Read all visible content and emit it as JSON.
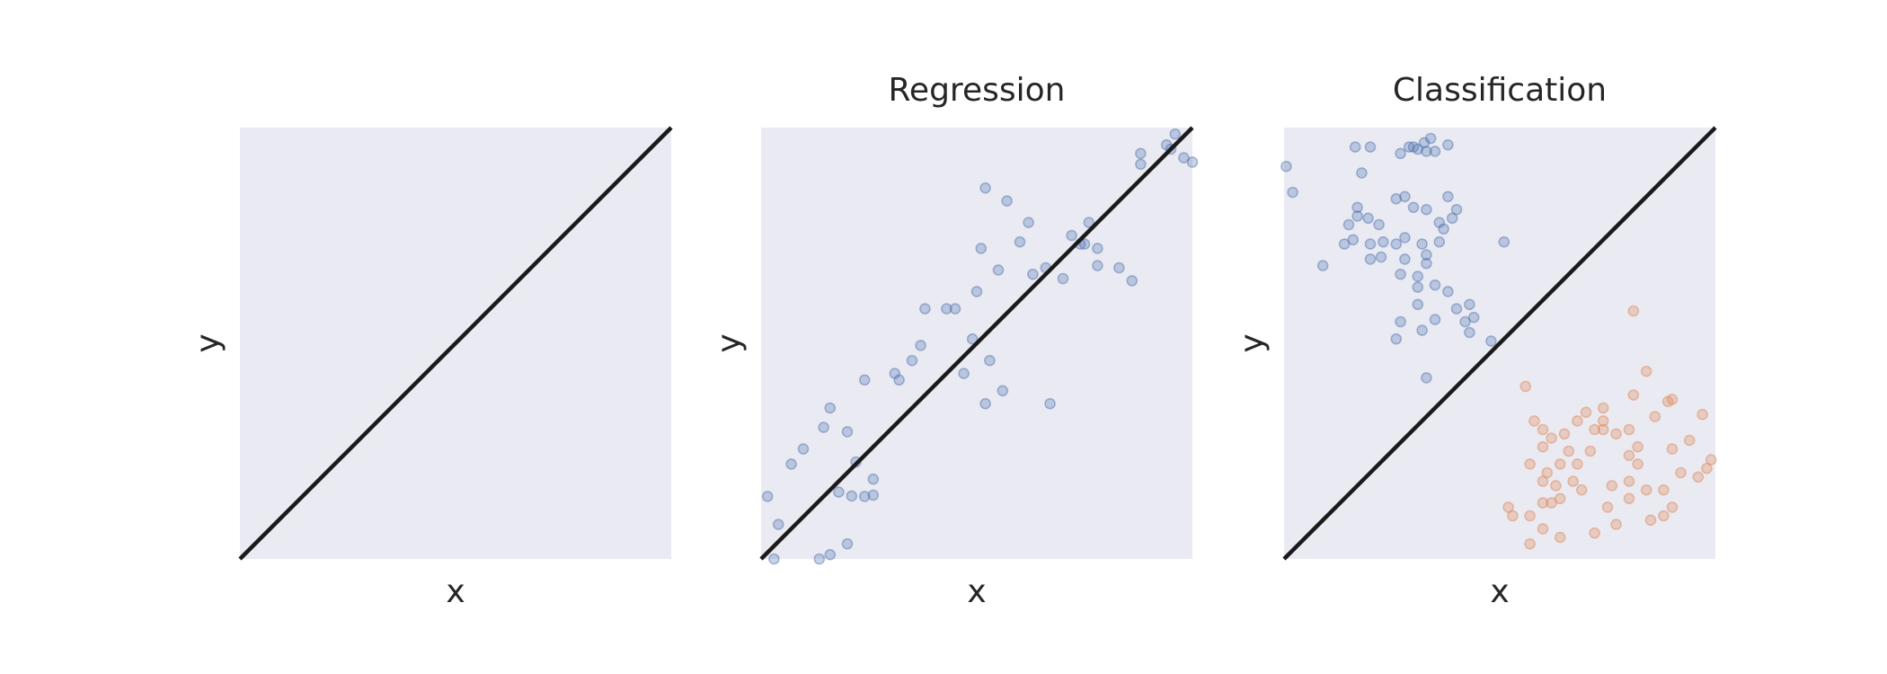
{
  "chart_data": [
    {
      "type": "line",
      "title": "",
      "xlabel": "x",
      "ylabel": "y",
      "xlim": [
        0,
        1
      ],
      "ylim": [
        0,
        1
      ],
      "grid": false,
      "series": [
        {
          "values": [
            [
              0,
              0
            ],
            [
              1,
              1
            ]
          ],
          "color": "#1a1a1a"
        }
      ]
    },
    {
      "type": "scatter",
      "title": "Regression",
      "xlabel": "x",
      "ylabel": "y",
      "xlim": [
        0,
        1
      ],
      "ylim": [
        0,
        1
      ],
      "grid": false,
      "series": [
        {
          "color": "#4c72b0",
          "points": [
            [
              0.015,
              0.145
            ],
            [
              0.04,
              0.08
            ],
            [
              0.07,
              0.22
            ],
            [
              0.098,
              0.255
            ],
            [
              0.16,
              0.35
            ],
            [
              0.18,
              0.155
            ],
            [
              0.21,
              0.146
            ],
            [
              0.26,
              0.148
            ],
            [
              0.24,
              0.145
            ],
            [
              0.26,
              0.185
            ],
            [
              0.22,
              0.225
            ],
            [
              0.2,
              0.295
            ],
            [
              0.145,
              0.305
            ],
            [
              0.24,
              0.415
            ],
            [
              0.32,
              0.415
            ],
            [
              0.31,
              0.43
            ],
            [
              0.35,
              0.46
            ],
            [
              0.37,
              0.495
            ],
            [
              0.38,
              0.58
            ],
            [
              0.45,
              0.58
            ],
            [
              0.43,
              0.58
            ],
            [
              0.5,
              0.62
            ],
            [
              0.51,
              0.72
            ],
            [
              0.55,
              0.67
            ],
            [
              0.49,
              0.51
            ],
            [
              0.53,
              0.46
            ],
            [
              0.56,
              0.39
            ],
            [
              0.52,
              0.36
            ],
            [
              0.47,
              0.43
            ],
            [
              0.63,
              0.66
            ],
            [
              0.66,
              0.675
            ],
            [
              0.7,
              0.65
            ],
            [
              0.72,
              0.75
            ],
            [
              0.74,
              0.73
            ],
            [
              0.78,
              0.68
            ],
            [
              0.78,
              0.72
            ],
            [
              0.76,
              0.78
            ],
            [
              0.62,
              0.78
            ],
            [
              0.57,
              0.83
            ],
            [
              0.52,
              0.86
            ],
            [
              0.6,
              0.735
            ],
            [
              0.67,
              0.36
            ],
            [
              0.75,
              0.73
            ],
            [
              0.86,
              0.645
            ],
            [
              0.83,
              0.675
            ],
            [
              0.88,
              0.94
            ],
            [
              0.88,
              0.915
            ],
            [
              0.94,
              0.96
            ],
            [
              0.96,
              0.985
            ],
            [
              0.95,
              0.95
            ],
            [
              0.98,
              0.93
            ],
            [
              1.0,
              0.92
            ],
            [
              0.2,
              0.035
            ],
            [
              0.16,
              0.01
            ],
            [
              0.135,
              0.0
            ],
            [
              0.03,
              0.0
            ]
          ]
        },
        {
          "values": [
            [
              0,
              0
            ],
            [
              1,
              1
            ]
          ],
          "color": "#1a1a1a"
        }
      ]
    },
    {
      "type": "scatter",
      "title": "Classification",
      "xlabel": "x",
      "ylabel": "y",
      "xlim": [
        0,
        1
      ],
      "ylim": [
        0,
        1
      ],
      "grid": false,
      "series": [
        {
          "color": "#4c72b0",
          "points": [
            [
              0.005,
              0.91
            ],
            [
              0.02,
              0.85
            ],
            [
              0.165,
              0.955
            ],
            [
              0.2,
              0.955
            ],
            [
              0.29,
              0.955
            ],
            [
              0.31,
              0.95
            ],
            [
              0.3,
              0.955
            ],
            [
              0.325,
              0.965
            ],
            [
              0.34,
              0.975
            ],
            [
              0.27,
              0.94
            ],
            [
              0.33,
              0.945
            ],
            [
              0.38,
              0.96
            ],
            [
              0.35,
              0.945
            ],
            [
              0.18,
              0.895
            ],
            [
              0.28,
              0.84
            ],
            [
              0.26,
              0.835
            ],
            [
              0.3,
              0.815
            ],
            [
              0.33,
              0.81
            ],
            [
              0.38,
              0.84
            ],
            [
              0.36,
              0.78
            ],
            [
              0.37,
              0.765
            ],
            [
              0.39,
              0.79
            ],
            [
              0.4,
              0.81
            ],
            [
              0.15,
              0.775
            ],
            [
              0.195,
              0.79
            ],
            [
              0.22,
              0.775
            ],
            [
              0.17,
              0.815
            ],
            [
              0.17,
              0.795
            ],
            [
              0.14,
              0.73
            ],
            [
              0.16,
              0.74
            ],
            [
              0.2,
              0.695
            ],
            [
              0.225,
              0.7
            ],
            [
              0.23,
              0.735
            ],
            [
              0.26,
              0.73
            ],
            [
              0.28,
              0.745
            ],
            [
              0.28,
              0.695
            ],
            [
              0.32,
              0.73
            ],
            [
              0.33,
              0.685
            ],
            [
              0.33,
              0.705
            ],
            [
              0.36,
              0.735
            ],
            [
              0.27,
              0.66
            ],
            [
              0.31,
              0.63
            ],
            [
              0.35,
              0.635
            ],
            [
              0.38,
              0.62
            ],
            [
              0.43,
              0.59
            ],
            [
              0.44,
              0.56
            ],
            [
              0.31,
              0.59
            ],
            [
              0.32,
              0.53
            ],
            [
              0.35,
              0.555
            ],
            [
              0.4,
              0.58
            ],
            [
              0.27,
              0.55
            ],
            [
              0.42,
              0.55
            ],
            [
              0.26,
              0.51
            ],
            [
              0.48,
              0.505
            ],
            [
              0.51,
              0.735
            ],
            [
              0.09,
              0.68
            ],
            [
              0.31,
              0.655
            ],
            [
              0.33,
              0.42
            ],
            [
              0.43,
              0.525
            ],
            [
              0.2,
              0.73
            ]
          ]
        },
        {
          "color": "#dd8452",
          "points": [
            [
              0.56,
              0.4
            ],
            [
              0.57,
              0.035
            ],
            [
              0.81,
              0.575
            ],
            [
              0.84,
              0.435
            ],
            [
              0.89,
              0.365
            ],
            [
              0.81,
              0.38
            ],
            [
              0.8,
              0.3
            ],
            [
              0.82,
              0.26
            ],
            [
              0.86,
              0.33
            ],
            [
              0.9,
              0.37
            ],
            [
              0.97,
              0.335
            ],
            [
              0.99,
              0.23
            ],
            [
              0.94,
              0.275
            ],
            [
              0.9,
              0.255
            ],
            [
              0.92,
              0.2
            ],
            [
              0.88,
              0.16
            ],
            [
              0.84,
              0.16
            ],
            [
              0.8,
              0.18
            ],
            [
              0.8,
              0.24
            ],
            [
              0.77,
              0.29
            ],
            [
              0.74,
              0.32
            ],
            [
              0.74,
              0.35
            ],
            [
              0.74,
              0.3
            ],
            [
              0.72,
              0.3
            ],
            [
              0.7,
              0.34
            ],
            [
              0.68,
              0.32
            ],
            [
              0.65,
              0.29
            ],
            [
              0.62,
              0.28
            ],
            [
              0.6,
              0.26
            ],
            [
              0.6,
              0.3
            ],
            [
              0.58,
              0.32
            ],
            [
              0.57,
              0.22
            ],
            [
              0.61,
              0.2
            ],
            [
              0.64,
              0.22
            ],
            [
              0.66,
              0.25
            ],
            [
              0.68,
              0.22
            ],
            [
              0.67,
              0.18
            ],
            [
              0.69,
              0.16
            ],
            [
              0.64,
              0.14
            ],
            [
              0.62,
              0.13
            ],
            [
              0.6,
              0.13
            ],
            [
              0.57,
              0.1
            ],
            [
              0.53,
              0.1
            ],
            [
              0.52,
              0.12
            ],
            [
              0.6,
              0.07
            ],
            [
              0.64,
              0.05
            ],
            [
              0.72,
              0.06
            ],
            [
              0.75,
              0.12
            ],
            [
              0.77,
              0.08
            ],
            [
              0.8,
              0.14
            ],
            [
              0.85,
              0.09
            ],
            [
              0.88,
              0.1
            ],
            [
              0.9,
              0.12
            ],
            [
              0.96,
              0.19
            ],
            [
              0.98,
              0.21
            ],
            [
              0.6,
              0.18
            ],
            [
              0.63,
              0.17
            ],
            [
              0.71,
              0.25
            ],
            [
              0.76,
              0.17
            ],
            [
              0.82,
              0.22
            ]
          ]
        },
        {
          "values": [
            [
              0,
              0
            ],
            [
              1,
              1
            ]
          ],
          "color": "#1a1a1a"
        }
      ]
    }
  ]
}
